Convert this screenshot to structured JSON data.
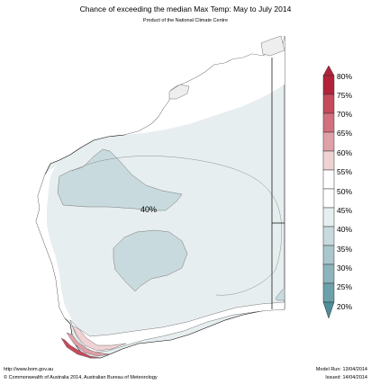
{
  "title": "Chance of exceeding the median Max Temp: May to July 2014",
  "subtitle": "Product of the National Climate Centre",
  "map_label": "40%",
  "legend": [
    {
      "label": "80%",
      "color": "#b2223a"
    },
    {
      "label": "75%",
      "color": "#c44a5c"
    },
    {
      "label": "70%",
      "color": "#d2707e"
    },
    {
      "label": "65%",
      "color": "#e0a0a8"
    },
    {
      "label": "60%",
      "color": "#f0d2d5"
    },
    {
      "label": "55%",
      "color": "#ffffff"
    },
    {
      "label": "50%",
      "color": "#ffffff"
    },
    {
      "label": "45%",
      "color": "#e7eef0"
    },
    {
      "label": "40%",
      "color": "#c8dade"
    },
    {
      "label": "35%",
      "color": "#a9c7cd"
    },
    {
      "label": "30%",
      "color": "#8bb4bc"
    },
    {
      "label": "25%",
      "color": "#6ca0aa"
    },
    {
      "label": "20%",
      "color": "#4f8d98"
    }
  ],
  "footer": {
    "url": "http://www.bom.gov.au",
    "copyright": "©  Commonwealth of Australia 2014, Australian Bureau of Meteorology",
    "model_run": "Model Run: 13/04/2014",
    "issued": "Issued: 14/04/2014"
  }
}
